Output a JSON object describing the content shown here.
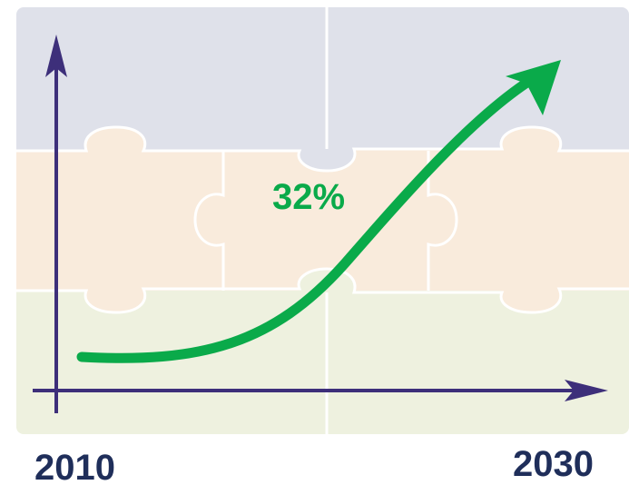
{
  "annotation": "32%",
  "x_start_label": "2010",
  "x_end_label": "2030"
}
